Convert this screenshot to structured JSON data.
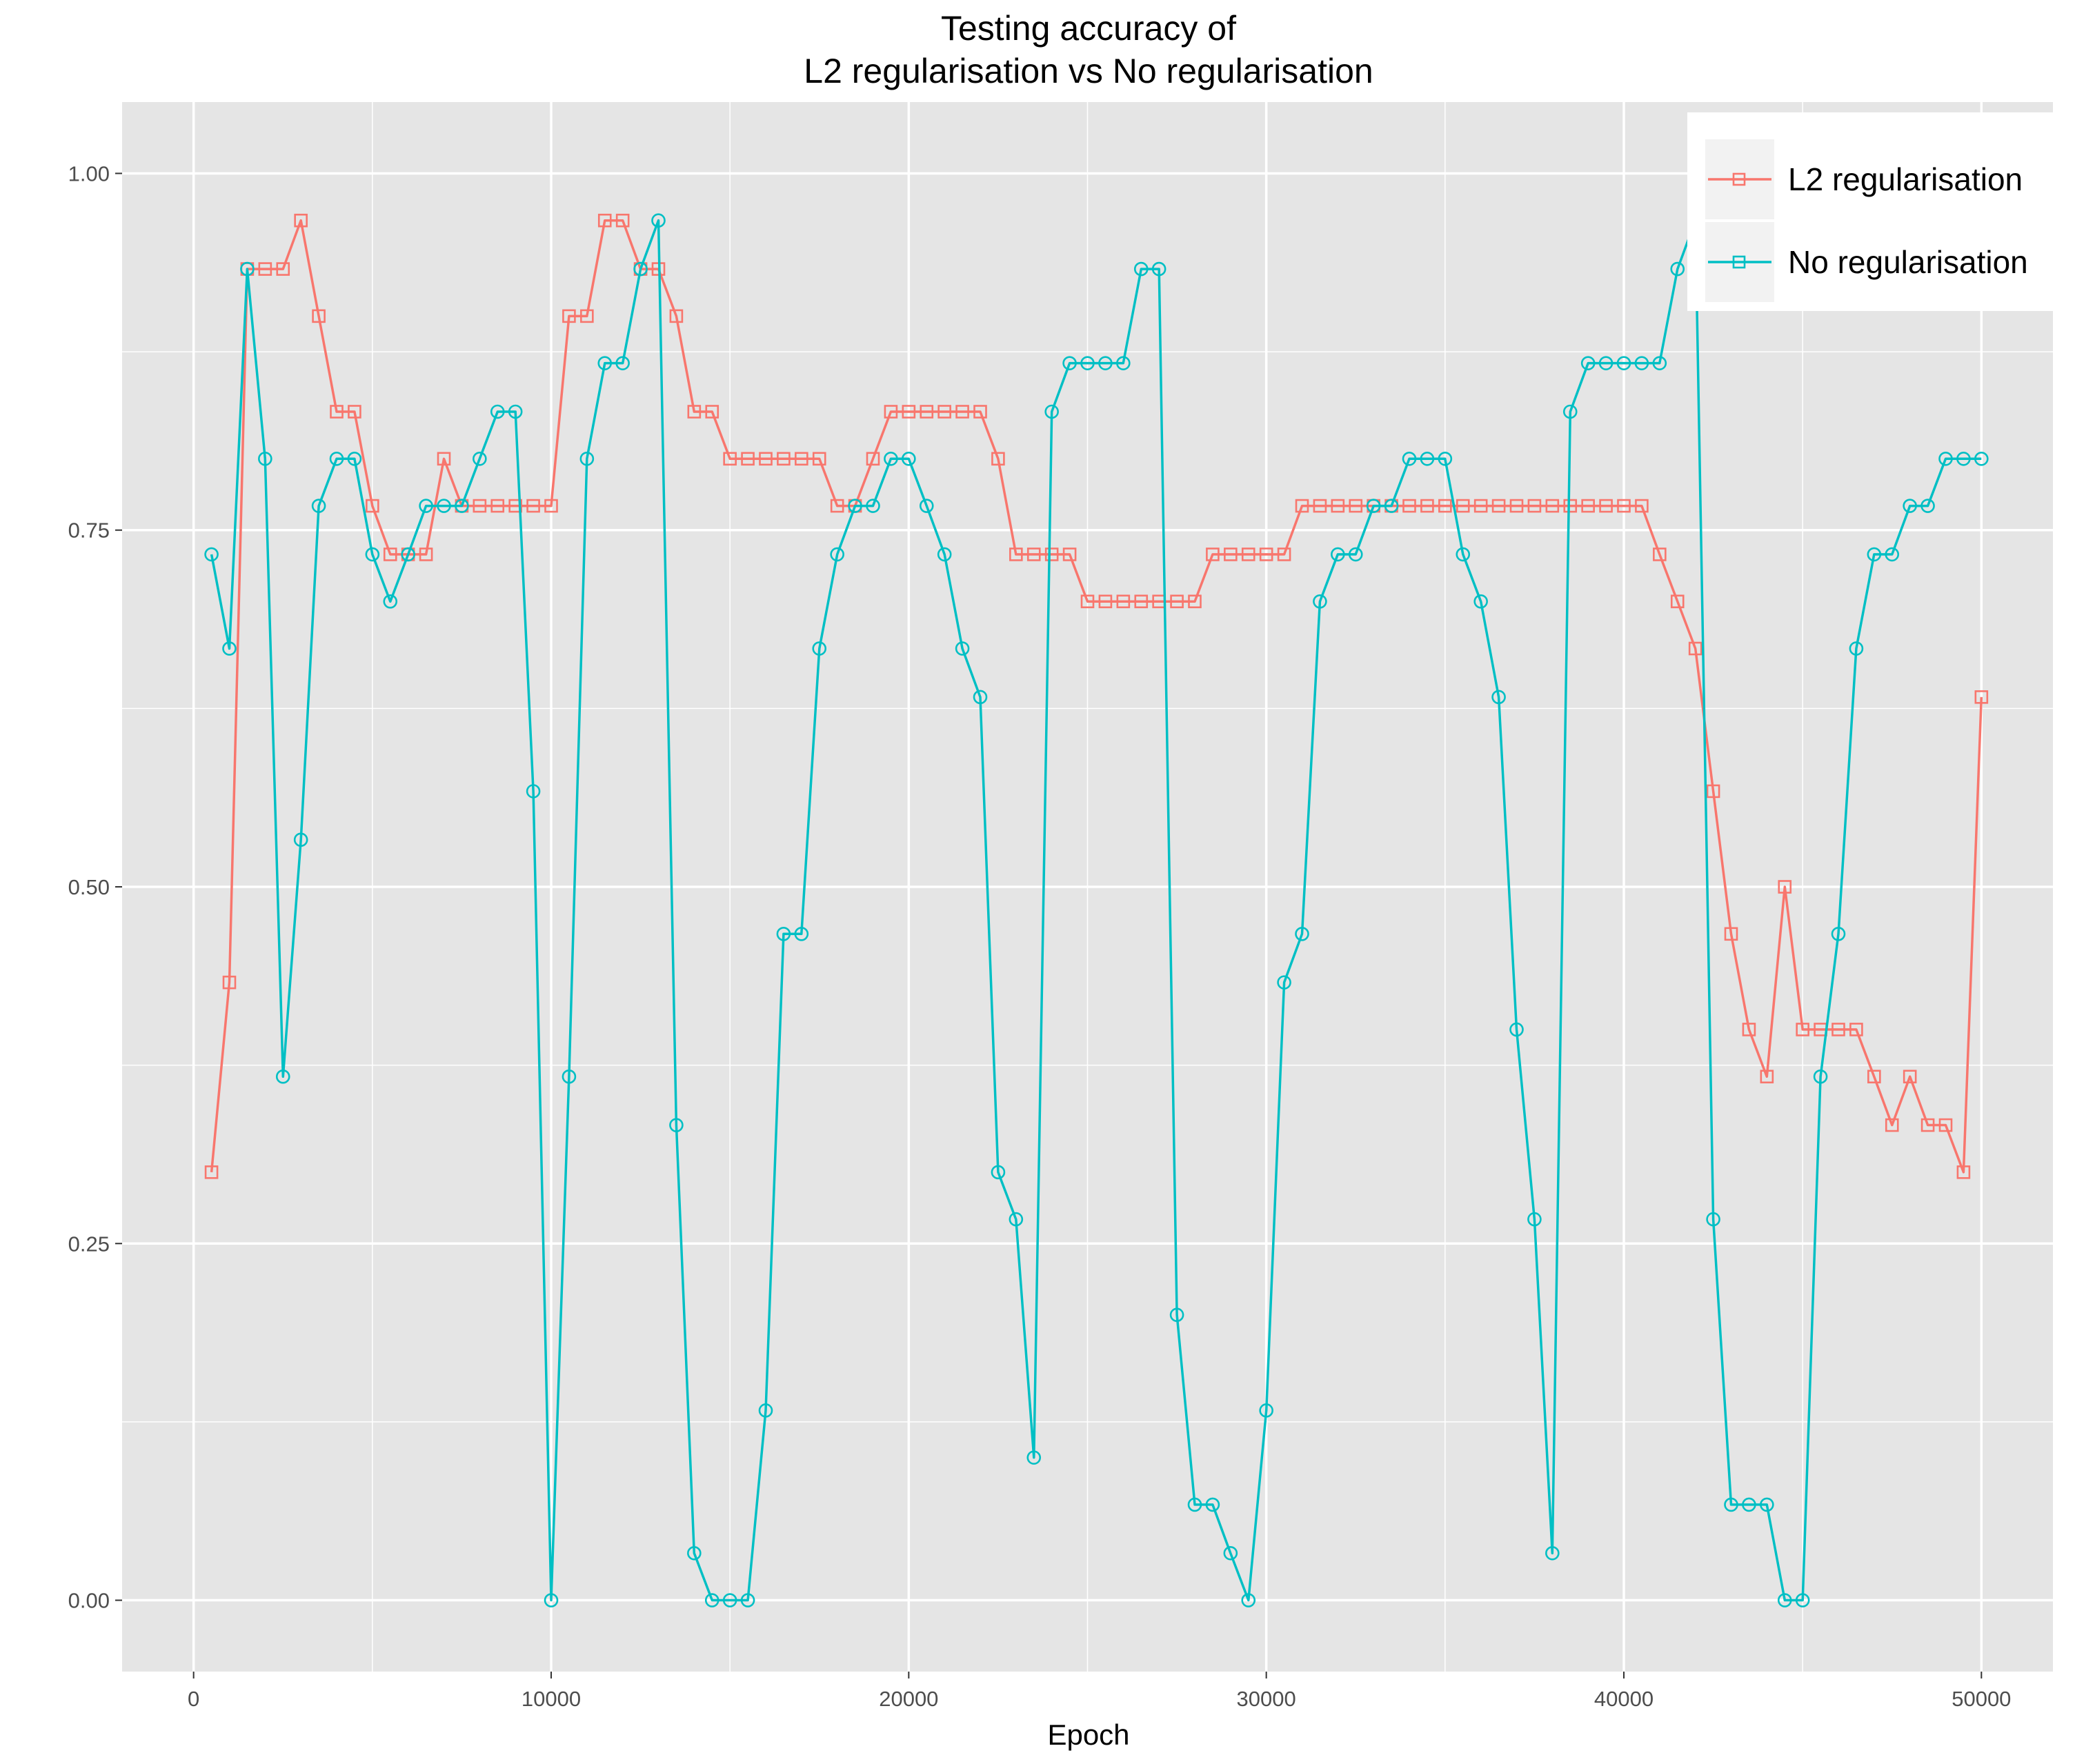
{
  "chart_data": {
    "type": "line",
    "title_line1": "Testing accuracy of",
    "title_line2": "L2 regularisation vs No regularisation",
    "xlabel": "Epoch",
    "ylabel": "",
    "xlim": [
      -2000,
      52000
    ],
    "ylim": [
      -0.05,
      1.05
    ],
    "x_ticks": [
      0,
      10000,
      20000,
      30000,
      40000,
      50000
    ],
    "x_tick_labels": [
      "0",
      "10000",
      "20000",
      "30000",
      "40000",
      "50000"
    ],
    "y_ticks": [
      0,
      0.25,
      0.5,
      0.75,
      1
    ],
    "y_tick_labels": [
      "0.00",
      "0.25",
      "0.50",
      "0.75",
      "1.00"
    ],
    "grid": true,
    "legend_position": "top-right",
    "background": "#e5e5e5",
    "series": [
      {
        "name": "L2 regularisation",
        "color": "#f8766d",
        "marker": "square",
        "x": [
          500,
          1000,
          1500,
          2000,
          2500,
          3000,
          3500,
          4000,
          4500,
          5000,
          5500,
          6000,
          6500,
          7000,
          7500,
          8000,
          8500,
          9000,
          9500,
          10000,
          10500,
          11000,
          11500,
          12000,
          12500,
          13000,
          13500,
          14000,
          14500,
          15000,
          15500,
          16000,
          16500,
          17000,
          17500,
          18000,
          18500,
          19000,
          19500,
          20000,
          20500,
          21000,
          21500,
          22000,
          22500,
          23000,
          23500,
          24000,
          24500,
          25000,
          25500,
          26000,
          26500,
          27000,
          27500,
          28000,
          28500,
          29000,
          29500,
          30000,
          30500,
          31000,
          31500,
          32000,
          32500,
          33000,
          33500,
          34000,
          34500,
          35000,
          35500,
          36000,
          36500,
          37000,
          37500,
          38000,
          38500,
          39000,
          39500,
          40000,
          40500,
          41000,
          41500,
          42000,
          42500,
          43000,
          43500,
          44000,
          44500,
          45000,
          45500,
          46000,
          46500,
          47000,
          47500,
          48000,
          48500,
          49000,
          49500,
          50000
        ],
        "y": [
          0.3,
          0.433,
          0.933,
          0.933,
          0.933,
          0.967,
          0.9,
          0.833,
          0.833,
          0.767,
          0.733,
          0.733,
          0.733,
          0.8,
          0.767,
          0.767,
          0.767,
          0.767,
          0.767,
          0.767,
          0.9,
          0.9,
          0.967,
          0.967,
          0.933,
          0.933,
          0.9,
          0.833,
          0.833,
          0.8,
          0.8,
          0.8,
          0.8,
          0.8,
          0.8,
          0.767,
          0.767,
          0.8,
          0.833,
          0.833,
          0.833,
          0.833,
          0.833,
          0.833,
          0.8,
          0.733,
          0.733,
          0.733,
          0.733,
          0.7,
          0.7,
          0.7,
          0.7,
          0.7,
          0.7,
          0.7,
          0.733,
          0.733,
          0.733,
          0.733,
          0.733,
          0.767,
          0.767,
          0.767,
          0.767,
          0.767,
          0.767,
          0.767,
          0.767,
          0.767,
          0.767,
          0.767,
          0.767,
          0.767,
          0.767,
          0.767,
          0.767,
          0.767,
          0.767,
          0.767,
          0.767,
          0.733,
          0.7,
          0.667,
          0.567,
          0.467,
          0.4,
          0.367,
          0.5,
          0.4,
          0.4,
          0.4,
          0.4,
          0.367,
          0.333,
          0.367,
          0.333,
          0.333,
          0.3,
          0.633
        ]
      },
      {
        "name": "No regularisation",
        "color": "#00bfc4",
        "marker": "circle",
        "x": [
          500,
          1000,
          1500,
          2000,
          2500,
          3000,
          3500,
          4000,
          4500,
          5000,
          5500,
          6000,
          6500,
          7000,
          7500,
          8000,
          8500,
          9000,
          9500,
          10000,
          10500,
          11000,
          11500,
          12000,
          12500,
          13000,
          13500,
          14000,
          14500,
          15000,
          15500,
          16000,
          16500,
          17000,
          17500,
          18000,
          18500,
          19000,
          19500,
          20000,
          20500,
          21000,
          21500,
          22000,
          22500,
          23000,
          23500,
          24000,
          24500,
          25000,
          25500,
          26000,
          26500,
          27000,
          27500,
          28000,
          28500,
          29000,
          29500,
          30000,
          30500,
          31000,
          31500,
          32000,
          32500,
          33000,
          33500,
          34000,
          34500,
          35000,
          35500,
          36000,
          36500,
          37000,
          37500,
          38000,
          38500,
          39000,
          39500,
          40000,
          40500,
          41000,
          41500,
          42000,
          42500,
          43000,
          43500,
          44000,
          44500,
          45000,
          45500,
          46000,
          46500,
          47000,
          47500,
          48000,
          48500,
          49000,
          49500,
          50000
        ],
        "y": [
          0.733,
          0.667,
          0.933,
          0.8,
          0.367,
          0.533,
          0.767,
          0.8,
          0.8,
          0.733,
          0.7,
          0.733,
          0.767,
          0.767,
          0.767,
          0.8,
          0.833,
          0.833,
          0.567,
          0.0,
          0.367,
          0.8,
          0.867,
          0.867,
          0.933,
          0.967,
          0.333,
          0.033,
          0.0,
          0.0,
          0.0,
          0.133,
          0.467,
          0.467,
          0.667,
          0.733,
          0.767,
          0.767,
          0.8,
          0.8,
          0.767,
          0.733,
          0.667,
          0.633,
          0.3,
          0.267,
          0.1,
          0.833,
          0.867,
          0.867,
          0.867,
          0.867,
          0.933,
          0.933,
          0.2,
          0.067,
          0.067,
          0.033,
          0.0,
          0.133,
          0.433,
          0.467,
          0.7,
          0.733,
          0.733,
          0.767,
          0.767,
          0.8,
          0.8,
          0.8,
          0.733,
          0.7,
          0.633,
          0.4,
          0.267,
          0.033,
          0.833,
          0.867,
          0.867,
          0.867,
          0.867,
          0.867,
          0.933,
          0.967,
          0.267,
          0.067,
          0.067,
          0.067,
          0.0,
          0.0,
          0.367,
          0.467,
          0.667,
          0.733,
          0.733,
          0.767,
          0.767,
          0.8,
          0.8,
          0.8
        ]
      }
    ]
  }
}
